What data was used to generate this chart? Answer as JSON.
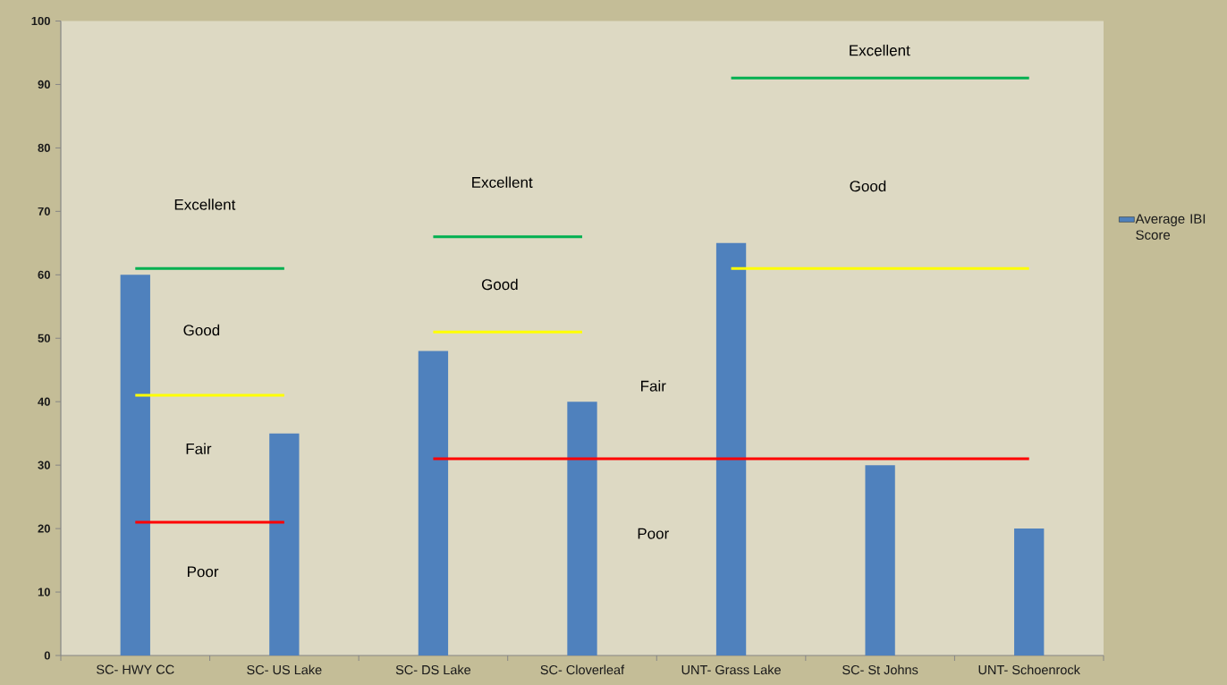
{
  "chart_data": {
    "type": "bar",
    "categories": [
      "SC- HWY CC",
      "SC- US Lake",
      "SC- DS Lake",
      "SC- Cloverleaf",
      "UNT- Grass Lake",
      "SC- St Johns",
      "UNT- Schoenrock"
    ],
    "series": [
      {
        "name": "Average IBI Score",
        "color": "#4f81bd",
        "values": [
          60,
          35,
          48,
          40,
          65,
          30,
          20
        ]
      },
      {
        "type": "line",
        "color": "#00b050",
        "x": [
          "SC- HWY CC",
          "SC- US Lake"
        ],
        "values": [
          61,
          61
        ]
      },
      {
        "type": "line",
        "color": "#ffff00",
        "x": [
          "SC- HWY CC",
          "SC- US Lake"
        ],
        "values": [
          41,
          41
        ]
      },
      {
        "type": "line",
        "color": "#ff0000",
        "x": [
          "SC- HWY CC",
          "SC- US Lake"
        ],
        "values": [
          21,
          21
        ]
      },
      {
        "type": "line",
        "color": "#00b050",
        "x": [
          "SC- DS Lake",
          "SC- Cloverleaf"
        ],
        "values": [
          66,
          66
        ]
      },
      {
        "type": "line",
        "color": "#ffff00",
        "x": [
          "SC- DS Lake",
          "SC- Cloverleaf"
        ],
        "values": [
          51,
          51
        ]
      },
      {
        "type": "line",
        "color": "#ff0000",
        "x": [
          "SC- DS Lake",
          "UNT- Schoenrock"
        ],
        "values": [
          31,
          31
        ]
      },
      {
        "type": "line",
        "color": "#00b050",
        "x": [
          "UNT- Grass Lake",
          "UNT- Schoenrock"
        ],
        "values": [
          91,
          91
        ]
      },
      {
        "type": "line",
        "color": "#ffff00",
        "x": [
          "UNT- Grass Lake",
          "UNT- Schoenrock"
        ],
        "values": [
          61,
          61
        ]
      }
    ],
    "ylim": [
      0,
      100
    ],
    "yticks": [
      0,
      10,
      20,
      30,
      40,
      50,
      60,
      70,
      80,
      90,
      100
    ],
    "legend": "right",
    "annotations": [
      "Excellent",
      "Good",
      "Fair",
      "Poor",
      "Excellent",
      "Good",
      "Fair",
      "Poor",
      "Excellent",
      "Good"
    ]
  }
}
